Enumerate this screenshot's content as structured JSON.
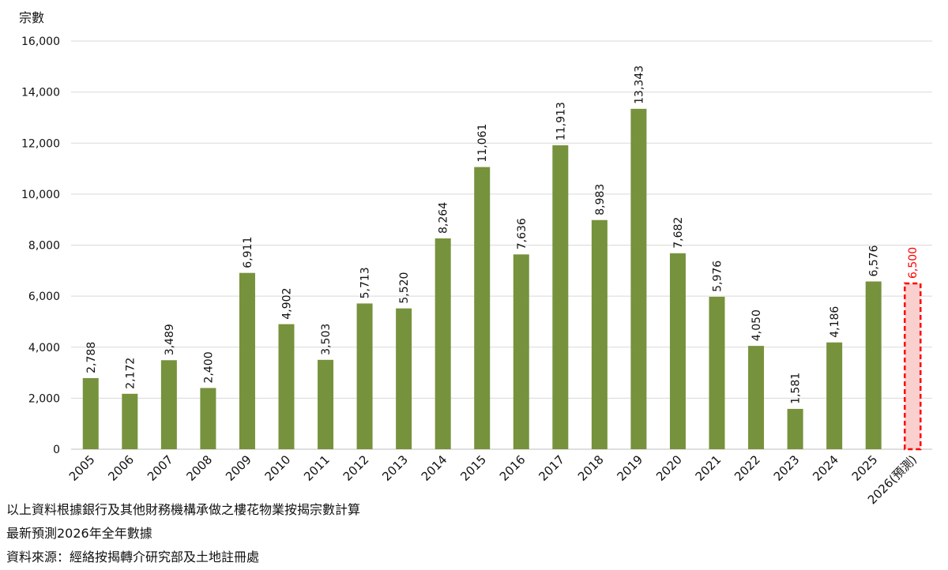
{
  "chart_data": {
    "type": "bar",
    "ylabel": "宗數",
    "ylim": [
      0,
      16000
    ],
    "yticks": [
      "0",
      "2,000",
      "4,000",
      "6,000",
      "8,000",
      "10,000",
      "12,000",
      "14,000",
      "16,000"
    ],
    "categories": [
      "2005",
      "2006",
      "2007",
      "2008",
      "2009",
      "2010",
      "2011",
      "2012",
      "2013",
      "2014",
      "2015",
      "2016",
      "2017",
      "2018",
      "2019",
      "2020",
      "2021",
      "2022",
      "2023",
      "2024",
      "2025",
      "2026(預測)"
    ],
    "values": [
      2788,
      2172,
      3489,
      2400,
      6911,
      4902,
      3503,
      5713,
      5520,
      8264,
      11061,
      7636,
      11913,
      8983,
      13343,
      7682,
      5976,
      4050,
      1581,
      4186,
      6576,
      6500
    ],
    "value_labels": [
      "2,788",
      "2,172",
      "3,489",
      "2,400",
      "6,911",
      "4,902",
      "3,503",
      "5,713",
      "5,520",
      "8,264",
      "11,061",
      "7,636",
      "11,913",
      "8,983",
      "13,343",
      "7,682",
      "5,976",
      "4,050",
      "1,581",
      "4,186",
      "6,576",
      "6,500"
    ],
    "forecast_index": 21,
    "grid": true,
    "colors": {
      "bar": "#76923c",
      "forecast_fill": "#f9d0cd",
      "forecast_border": "#ff0000",
      "forecast_label": "#ff0000",
      "grid": "#d9d9d9"
    }
  },
  "footnotes": [
    "以上資料根據銀行及其他財務機構承做之樓花物業按揭宗數計算",
    "最新預測2026年全年數據",
    "資料來源：經絡按揭轉介研究部及土地註冊處"
  ]
}
